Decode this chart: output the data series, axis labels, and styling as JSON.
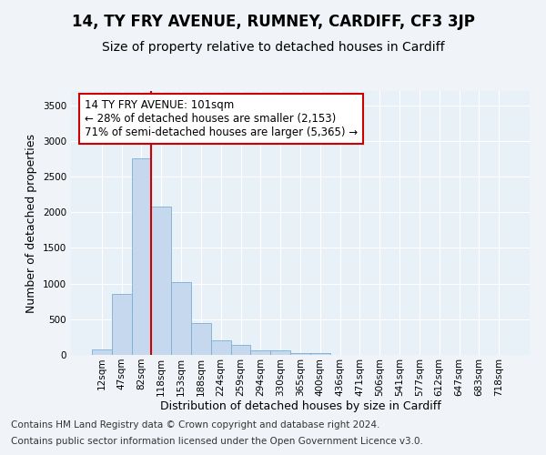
{
  "title": "14, TY FRY AVENUE, RUMNEY, CARDIFF, CF3 3JP",
  "subtitle": "Size of property relative to detached houses in Cardiff",
  "xlabel": "Distribution of detached houses by size in Cardiff",
  "ylabel": "Number of detached properties",
  "bar_categories": [
    "12sqm",
    "47sqm",
    "82sqm",
    "118sqm",
    "153sqm",
    "188sqm",
    "224sqm",
    "259sqm",
    "294sqm",
    "330sqm",
    "365sqm",
    "400sqm",
    "436sqm",
    "471sqm",
    "506sqm",
    "541sqm",
    "577sqm",
    "612sqm",
    "647sqm",
    "683sqm",
    "718sqm"
  ],
  "bar_values": [
    75,
    850,
    2750,
    2075,
    1025,
    450,
    210,
    145,
    60,
    60,
    30,
    20,
    5,
    0,
    0,
    0,
    0,
    0,
    0,
    0,
    0
  ],
  "bar_color": "#c5d8ed",
  "bar_edgecolor": "#7aafd4",
  "vline_color": "#cc0000",
  "vline_position": 2.5,
  "annotation_text": "14 TY FRY AVENUE: 101sqm\n← 28% of detached houses are smaller (2,153)\n71% of semi-detached houses are larger (5,365) →",
  "annotation_box_color": "#ffffff",
  "annotation_border_color": "#cc0000",
  "footnote1": "Contains HM Land Registry data © Crown copyright and database right 2024.",
  "footnote2": "Contains public sector information licensed under the Open Government Licence v3.0.",
  "ylim": [
    0,
    3700
  ],
  "bg_color": "#f0f4f8",
  "plot_bg_color": "#e8f0f8",
  "title_fontsize": 12,
  "subtitle_fontsize": 10,
  "xlabel_fontsize": 9,
  "ylabel_fontsize": 9,
  "tick_fontsize": 7.5,
  "footnote_fontsize": 7.5,
  "ytick_interval": 500
}
